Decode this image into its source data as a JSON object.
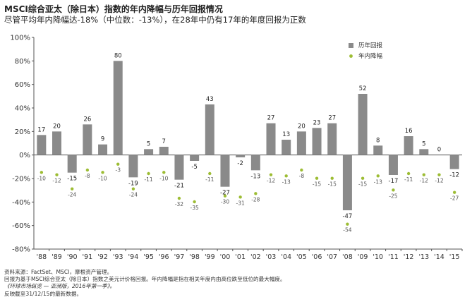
{
  "header": {
    "title": "MSCI综合亚太（除日本）指数的年内降幅与历年回报情况",
    "subtitle": "尽管平均年内降幅达-18%（中位数：-13%），在28年中仍有17年的年度回报为正数"
  },
  "footnotes": [
    "资料来源：FactSet、MSCI，摩根资产管理。",
    "回报为基于MSCI综合亚太（除日本）指数之美元计价格回报。年内降幅是指在相关年度内由高位跌至低位的最大幅度。",
    "《环球市场纵览 — 亚洲版，2016年第一季》。",
    "反映截至31/12/15的最新数据。"
  ],
  "colors": {
    "bar": "#8a8a8a",
    "dot": "#9dbd34",
    "axis": "#555555",
    "grid": "#dddddd"
  },
  "chart_data": {
    "type": "bar",
    "categories": [
      "'88",
      "'89",
      "'90",
      "'91",
      "'92",
      "'93",
      "'94",
      "'95",
      "'96",
      "'97",
      "'98",
      "'99",
      "'00",
      "'01",
      "'02",
      "'03",
      "'04",
      "'05",
      "'06",
      "'07",
      "'08",
      "'09",
      "'10",
      "'11",
      "'12",
      "'13",
      "'14",
      "'15"
    ],
    "series": [
      {
        "name": "历年回报",
        "type": "bar",
        "values": [
          17,
          20,
          -15,
          26,
          9,
          80,
          -19,
          5,
          7,
          -21,
          -5,
          43,
          -27,
          -2,
          -13,
          27,
          13,
          20,
          23,
          27,
          -47,
          52,
          8,
          -17,
          16,
          5,
          0,
          -12
        ]
      },
      {
        "name": "年内降幅",
        "type": "scatter",
        "values": [
          -10,
          -12,
          -24,
          -8,
          -10,
          -3,
          -24,
          -11,
          -10,
          -32,
          -35,
          -11,
          -30,
          -31,
          -28,
          -12,
          -13,
          -8,
          -15,
          -15,
          -54,
          -15,
          -13,
          -25,
          -11,
          -12,
          -12,
          -27
        ]
      }
    ],
    "ylim": [
      -80,
      100
    ],
    "yticks": [
      -80,
      -60,
      -40,
      -20,
      0,
      20,
      40,
      60,
      80,
      100
    ],
    "ytick_labels": [
      "-80%",
      "-60%",
      "-40%",
      "-20%",
      "0%",
      "20%",
      "40%",
      "60%",
      "80%",
      "100%"
    ],
    "legend": {
      "placement": "top-right",
      "entries": [
        "历年回报",
        "年内降幅"
      ]
    },
    "grid": false
  }
}
